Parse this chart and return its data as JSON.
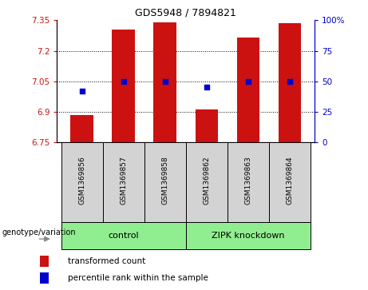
{
  "title": "GDS5948 / 7894821",
  "samples": [
    "GSM1369856",
    "GSM1369857",
    "GSM1369858",
    "GSM1369862",
    "GSM1369863",
    "GSM1369864"
  ],
  "bar_values": [
    6.885,
    7.305,
    7.34,
    6.91,
    7.265,
    7.335
  ],
  "percentile_values": [
    7.0,
    7.05,
    7.05,
    7.02,
    7.05,
    7.05
  ],
  "ylim_left": [
    6.75,
    7.35
  ],
  "ylim_right": [
    0,
    100
  ],
  "yticks_left": [
    6.75,
    6.9,
    7.05,
    7.2,
    7.35
  ],
  "yticks_right": [
    0,
    25,
    50,
    75,
    100
  ],
  "ytick_labels_right": [
    "0",
    "25",
    "50",
    "75",
    "100%"
  ],
  "bar_color": "#cc1111",
  "percentile_color": "#0000cc",
  "group_label_prefix": "genotype/variation",
  "legend_bar_label": "transformed count",
  "legend_pct_label": "percentile rank within the sample",
  "sample_box_color": "#d3d3d3",
  "group_color": "#90ee90",
  "group1_label": "control",
  "group2_label": "ZIPK knockdown",
  "grid_dotted_at": [
    6.9,
    7.05,
    7.2
  ]
}
